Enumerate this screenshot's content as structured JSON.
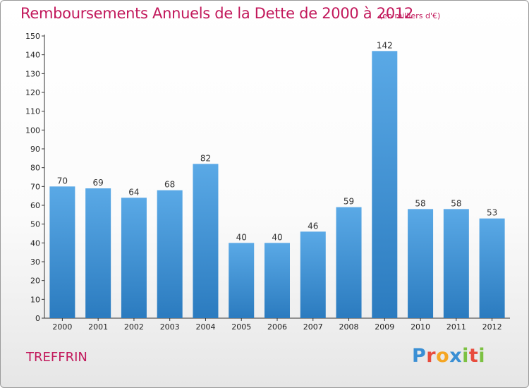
{
  "chart_data": {
    "type": "bar",
    "title": "Remboursements Annuels de la Dette de 2000 à 2012",
    "subtitle": "(en milliers d'€)",
    "categories": [
      "2000",
      "2001",
      "2002",
      "2003",
      "2004",
      "2005",
      "2006",
      "2007",
      "2008",
      "2009",
      "2010",
      "2011",
      "2012"
    ],
    "values": [
      70,
      69,
      64,
      68,
      82,
      40,
      40,
      46,
      59,
      142,
      58,
      58,
      53
    ],
    "ylim": [
      0,
      150
    ],
    "ytick_step": 10,
    "grid": false,
    "bar_color_top": "#5aa9e6",
    "bar_color_bottom": "#2b7bbf"
  },
  "commune": "TREFFRIN",
  "logo": {
    "letters": [
      "P",
      "r",
      "o",
      "x",
      "i",
      "t",
      "i"
    ],
    "colors": [
      "#3a8fd4",
      "#e84c3d",
      "#f5a623",
      "#3a8fd4",
      "#7cc142",
      "#e84c3d",
      "#7cc142"
    ]
  },
  "colors": {
    "accent": "#c2185b",
    "axis": "#333333"
  }
}
